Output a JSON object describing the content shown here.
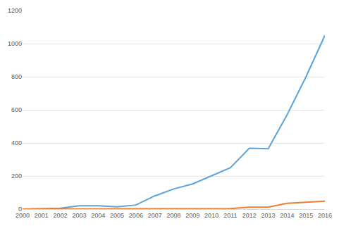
{
  "chart_data": {
    "type": "line",
    "categories": [
      "2000",
      "2001",
      "2002",
      "2003",
      "2004",
      "2005",
      "2006",
      "2007",
      "2008",
      "2009",
      "2010",
      "2011",
      "2012",
      "2013",
      "2014",
      "2015",
      "2016"
    ],
    "series": [
      {
        "color": "#5ba3d9",
        "values": [
          0,
          3,
          5,
          20,
          20,
          14,
          25,
          80,
          122,
          152,
          200,
          250,
          368,
          365,
          570,
          800,
          1050
        ]
      },
      {
        "color": "#ed7d31",
        "values": [
          0,
          0,
          0,
          0,
          0,
          0,
          0,
          0,
          0,
          3,
          3,
          3,
          12,
          12,
          35,
          40,
          48
        ]
      }
    ],
    "ylim": [
      0,
      1200
    ],
    "yticks": [
      0,
      200,
      400,
      600,
      800,
      1000,
      1200
    ],
    "grid": true
  }
}
